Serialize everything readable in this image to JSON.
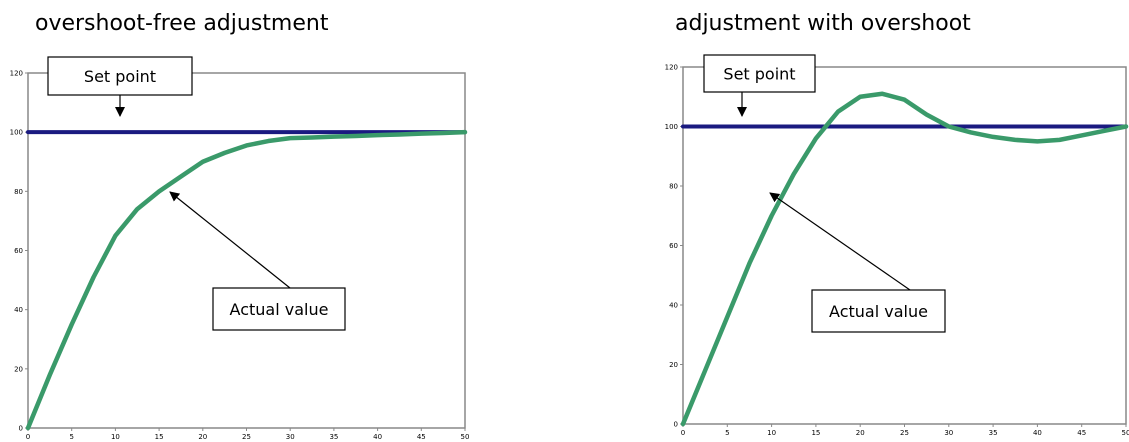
{
  "chart_data": [
    {
      "type": "line",
      "title": "overshoot-free adjustment",
      "x": [
        0,
        2.5,
        5,
        7.5,
        10,
        12.5,
        15,
        17.5,
        20,
        22.5,
        25,
        27.5,
        30,
        32.5,
        35,
        37.5,
        40,
        42.5,
        45,
        47.5,
        50
      ],
      "series": [
        {
          "color": "#1a1a80",
          "values": [
            100,
            100,
            100,
            100,
            100,
            100,
            100,
            100,
            100,
            100,
            100,
            100,
            100,
            100,
            100,
            100,
            100,
            100,
            100,
            100,
            100
          ]
        },
        {
          "color": "#3a9a6a",
          "values": [
            0,
            18,
            35,
            51,
            65,
            74,
            80,
            85,
            90,
            93,
            95.5,
            97,
            98,
            98.2,
            98.5,
            98.7,
            99,
            99.2,
            99.5,
            99.7,
            100
          ]
        }
      ],
      "annotations": [
        "Set point",
        "Actual value"
      ],
      "xlim": [
        0,
        50
      ],
      "xticks": [
        0,
        5,
        10,
        15,
        20,
        25,
        30,
        35,
        40,
        45,
        50
      ],
      "ylim": [
        0,
        120
      ],
      "yticks": [
        0,
        20,
        40,
        60,
        80,
        100,
        120
      ]
    },
    {
      "type": "line",
      "title": "adjustment with overshoot",
      "x": [
        0,
        2.5,
        5,
        7.5,
        10,
        12.5,
        15,
        17.5,
        20,
        22.5,
        25,
        27.5,
        30,
        32.5,
        35,
        37.5,
        40,
        42.5,
        45,
        47.5,
        50
      ],
      "series": [
        {
          "color": "#1a1a80",
          "values": [
            100,
            100,
            100,
            100,
            100,
            100,
            100,
            100,
            100,
            100,
            100,
            100,
            100,
            100,
            100,
            100,
            100,
            100,
            100,
            100,
            100
          ]
        },
        {
          "color": "#3a9a6a",
          "values": [
            0,
            18,
            36,
            54,
            70,
            84,
            96,
            105,
            110,
            111,
            109,
            104,
            100,
            98,
            96.5,
            95.5,
            95,
            95.5,
            97,
            98.5,
            100
          ]
        }
      ],
      "annotations": [
        "Set point",
        "Actual value"
      ],
      "xlim": [
        0,
        50
      ],
      "xticks": [
        0,
        5,
        10,
        15,
        20,
        25,
        30,
        35,
        40,
        45,
        50
      ],
      "ylim": [
        0,
        120
      ],
      "yticks": [
        0,
        20,
        40,
        60,
        80,
        100,
        120
      ]
    }
  ]
}
